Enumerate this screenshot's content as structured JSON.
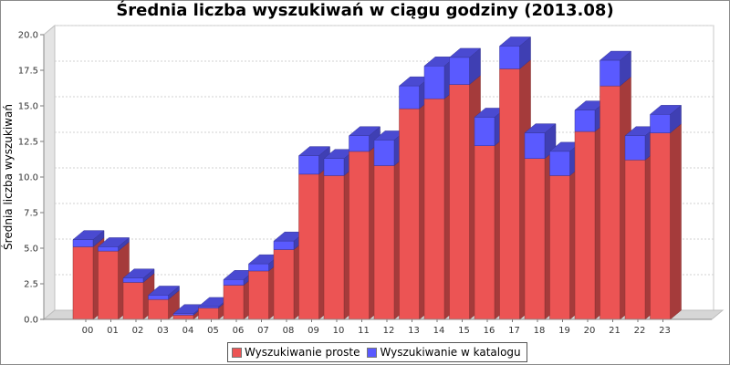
{
  "chart_data": {
    "type": "bar",
    "stacked": true,
    "style": "3d",
    "title": "Średnia liczba wyszukiwań w ciągu godziny (2013.08)",
    "xlabel": "",
    "ylabel": "Średnia liczba wyszukiwań",
    "ylim": [
      0,
      20
    ],
    "yticks": [
      "0.0",
      "2.5",
      "5.0",
      "7.5",
      "10.0",
      "12.5",
      "15.0",
      "17.5",
      "20.0"
    ],
    "grid": true,
    "legend_position": "bottom",
    "categories": [
      "00",
      "01",
      "02",
      "03",
      "04",
      "05",
      "06",
      "07",
      "08",
      "09",
      "10",
      "11",
      "12",
      "13",
      "14",
      "15",
      "16",
      "17",
      "18",
      "19",
      "20",
      "21",
      "22",
      "23"
    ],
    "series": [
      {
        "name": "Wyszukiwanie proste",
        "color": "#ec5454",
        "values": [
          5.1,
          4.8,
          2.6,
          1.4,
          0.3,
          0.8,
          2.4,
          3.4,
          4.9,
          10.2,
          10.1,
          11.8,
          10.8,
          14.8,
          15.5,
          16.5,
          12.2,
          17.6,
          11.3,
          10.1,
          13.2,
          16.4,
          11.2,
          13.1
        ]
      },
      {
        "name": "Wyszukiwanie w katalogu",
        "color": "#5a5aff",
        "values": [
          0.5,
          0.3,
          0.3,
          0.3,
          0.1,
          0.1,
          0.4,
          0.5,
          0.6,
          1.3,
          1.2,
          1.1,
          1.8,
          1.6,
          2.3,
          1.9,
          2.0,
          1.6,
          1.8,
          1.7,
          1.5,
          1.8,
          1.7,
          1.3
        ]
      }
    ]
  }
}
